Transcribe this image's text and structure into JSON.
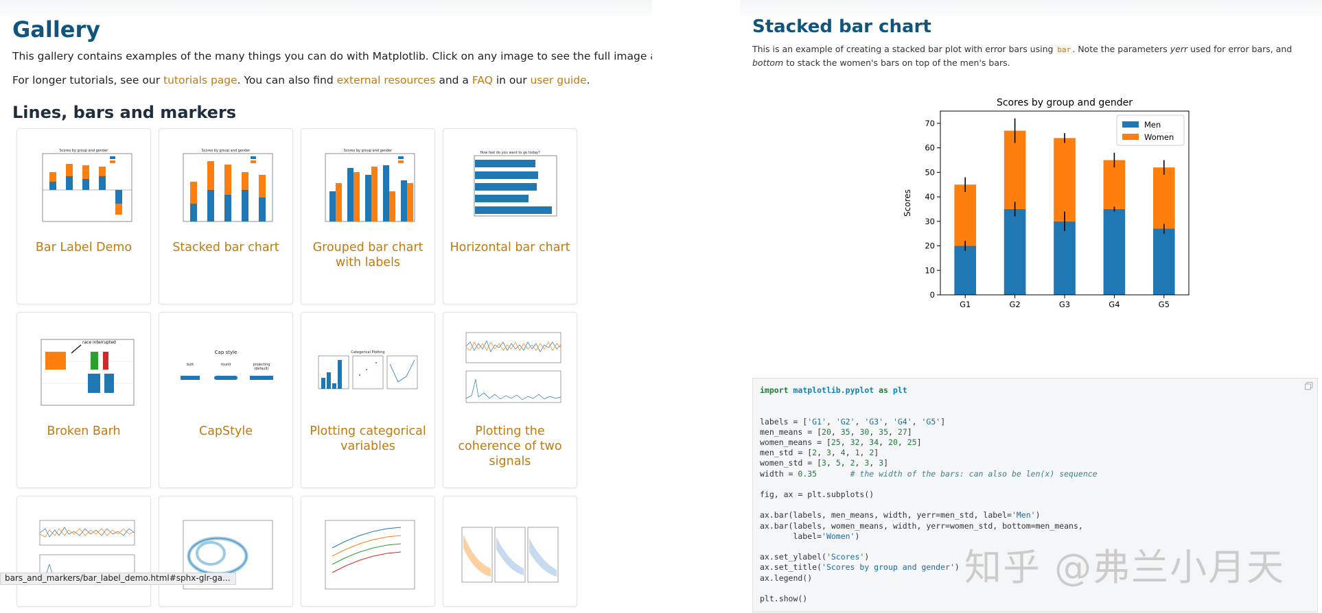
{
  "gallery": {
    "title": "Gallery",
    "intro": "This gallery contains examples of the many things you can do with Matplotlib. Click on any image to see the full image and source code.",
    "p2_a": "For longer tutorials, see our ",
    "link_tutorials": "tutorials page",
    "p2_b": ". You can also find ",
    "link_external": "external resources",
    "p2_c": " and a ",
    "link_faq": "FAQ",
    "p2_d": " in our ",
    "link_guide": "user guide",
    "p2_e": ".",
    "section": "Lines, bars and markers",
    "cards": [
      {
        "label": "Bar Label Demo"
      },
      {
        "label": "Stacked bar chart"
      },
      {
        "label": "Grouped bar chart with labels"
      },
      {
        "label": "Horizontal bar chart"
      },
      {
        "label": "Broken Barh"
      },
      {
        "label": "CapStyle"
      },
      {
        "label": "Plotting categorical variables"
      },
      {
        "label": "Plotting the coherence of two signals"
      }
    ],
    "thumb_text": {
      "t1": "Scores by group and gender",
      "t3": "Scores by group and gender",
      "t4": "How fast do you want to go today?",
      "t5": "race interrupted",
      "t6": "Cap style",
      "t6_butt": "butt",
      "t6_round": "round",
      "t6_proj": "projecting",
      "t6_def": "(default)",
      "t7": "Categorical Plotting"
    },
    "status_url": "bars_and_markers/bar_label_demo.html#sphx-glr-ga..."
  },
  "detail": {
    "title": "Stacked bar chart",
    "desc_a": "This is an example of creating a stacked bar plot with error bars using ",
    "desc_code": "bar",
    "desc_b": ". Note the parameters ",
    "desc_yerr": "yerr",
    "desc_c": " used for error bars, and ",
    "desc_bottom": "bottom",
    "desc_d": " to stack the women's bars on top of the men's bars.",
    "watermark": "知乎 @弗兰小月天"
  },
  "colors": {
    "men": "#1f77b4",
    "women": "#ff7f0e",
    "link": "#c07b0e",
    "title": "#11557c"
  },
  "chart_data": {
    "type": "bar",
    "title": "Scores by group and gender",
    "ylabel": "Scores",
    "categories": [
      "G1",
      "G2",
      "G3",
      "G4",
      "G5"
    ],
    "series": [
      {
        "name": "Men",
        "values": [
          20,
          35,
          30,
          35,
          27
        ],
        "err": [
          2,
          3,
          4,
          1,
          2
        ]
      },
      {
        "name": "Women",
        "values": [
          25,
          32,
          34,
          20,
          25
        ],
        "err": [
          3,
          5,
          2,
          3,
          3
        ]
      }
    ],
    "stacked": true,
    "ylim": [
      0,
      75
    ],
    "yticks": [
      0,
      10,
      20,
      30,
      40,
      50,
      60,
      70
    ],
    "legend": "top-right"
  }
}
